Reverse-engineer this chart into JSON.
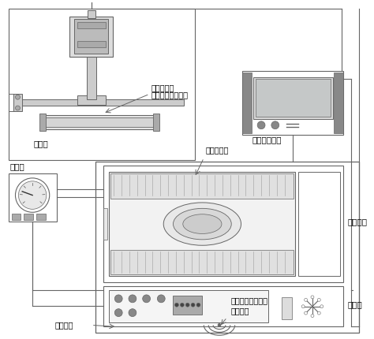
{
  "line_color": "#666666",
  "dark_color": "#888888",
  "light_gray": "#cccccc",
  "mid_gray": "#aaaaaa",
  "labels": {
    "ring_light": "环形照明灯",
    "detector_pos": "温控器检测时位置",
    "camera_table": "摄像台",
    "image_processor": "图像处理装置",
    "temp_ctrl": "温控器",
    "temp_bag": "温控器温包",
    "oil_tank": "恒温油槽",
    "calibrator": "校验仪",
    "connect_point": "连接触点",
    "antenna": "天线通过无线发射\n传输数据"
  },
  "fs": 7,
  "fs2": 7.5
}
